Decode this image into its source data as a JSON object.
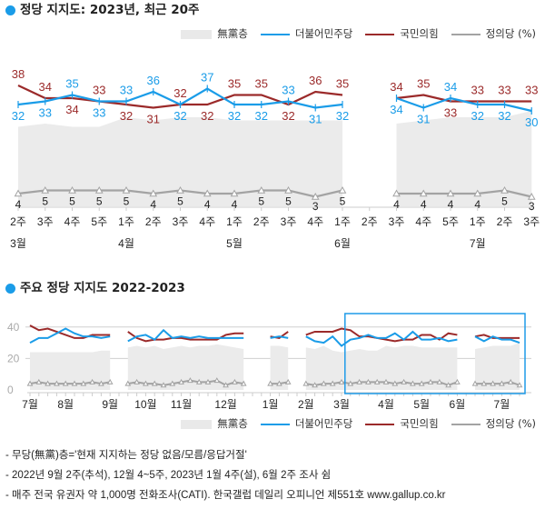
{
  "colors": {
    "dp": "#1a9ce8",
    "ppp": "#9b2a2a",
    "justice": "#a3a3a3",
    "independent": "#ebebeb",
    "highlight": "#1e9be8",
    "grid": "#d0d0d0"
  },
  "legend": {
    "independent": "無黨층",
    "dp": "더불어민주당",
    "ppp": "국민의힘",
    "justice": "정의당 (%)"
  },
  "chart_data": [
    {
      "type": "line",
      "title": "정당 지지도: 2023년, 최근 20주",
      "x_week_labels": [
        "2주",
        "3주",
        "4주",
        "5주",
        "1주",
        "2주",
        "3주",
        "4주",
        "1주",
        "2주",
        "3주",
        "4주",
        "1주",
        "2주",
        "3주",
        "4주",
        "5주",
        "1주",
        "2주",
        "3주"
      ],
      "x_month_labels": [
        {
          "label": "3월",
          "index": 0
        },
        {
          "label": "4월",
          "index": 4
        },
        {
          "label": "5월",
          "index": 8
        },
        {
          "label": "6월",
          "index": 12
        },
        {
          "label": "7월",
          "index": 17
        }
      ],
      "series": [
        {
          "name": "無黨층",
          "key": "independent",
          "type": "area",
          "values": [
            25,
            26,
            25,
            25,
            28,
            27,
            28,
            28,
            27,
            27,
            27,
            27,
            27,
            null,
            26,
            27,
            28,
            28,
            28,
            30
          ]
        },
        {
          "name": "더불어민주당",
          "key": "dp",
          "values": [
            32,
            33,
            35,
            33,
            33,
            36,
            32,
            37,
            32,
            32,
            33,
            31,
            32,
            null,
            34,
            31,
            34,
            32,
            32,
            30
          ]
        },
        {
          "name": "국민의힘",
          "key": "ppp",
          "values": [
            38,
            34,
            34,
            33,
            32,
            31,
            32,
            32,
            35,
            35,
            32,
            36,
            35,
            null,
            34,
            35,
            33,
            33,
            33,
            33
          ]
        },
        {
          "name": "정의당",
          "key": "justice",
          "values": [
            4,
            5,
            5,
            5,
            5,
            4,
            5,
            4,
            4,
            5,
            5,
            3,
            5,
            null,
            4,
            4,
            4,
            4,
            5,
            3
          ]
        }
      ],
      "unit": "%",
      "grid": false
    },
    {
      "type": "line",
      "title": "주요 정당 지지도 2022-2023",
      "months": [
        {
          "label": "7월",
          "weeks": 4
        },
        {
          "label": "8월",
          "weeks": 5
        },
        {
          "label": "9월",
          "weeks": 4
        },
        {
          "label": "10월",
          "weeks": 4
        },
        {
          "label": "11월",
          "weeks": 5
        },
        {
          "label": "12월",
          "weeks": 5
        },
        {
          "label": "1월",
          "weeks": 4
        },
        {
          "label": "2월",
          "weeks": 4
        },
        {
          "label": "3월",
          "weeks": 5
        },
        {
          "label": "4월",
          "weeks": 4
        },
        {
          "label": "5월",
          "weeks": 4
        },
        {
          "label": "6월",
          "weeks": 5
        },
        {
          "label": "7월",
          "weeks": 3
        }
      ],
      "y_ticks": [
        0,
        20,
        40
      ],
      "ylim": [
        0,
        45
      ],
      "grid": true,
      "highlight_range_weeks": [
        36,
        55
      ],
      "series": [
        {
          "name": "無黨층",
          "key": "independent",
          "type": "area",
          "values": [
            24,
            24,
            24,
            24,
            24,
            24,
            24,
            24,
            25,
            25,
            null,
            27,
            28,
            27,
            28,
            26,
            27,
            28,
            27,
            28,
            28,
            29,
            28,
            27,
            26,
            null,
            null,
            28,
            28,
            27,
            null,
            27,
            26,
            28,
            25,
            24,
            25,
            26,
            25,
            25,
            28,
            27,
            28,
            28,
            27,
            27,
            27,
            27,
            27,
            null,
            26,
            27,
            28,
            28,
            28,
            30
          ]
        },
        {
          "name": "더불어민주당",
          "key": "dp",
          "values": [
            30,
            33,
            33,
            36,
            39,
            36,
            34,
            34,
            33,
            34,
            null,
            31,
            34,
            35,
            32,
            38,
            33,
            34,
            33,
            34,
            33,
            33,
            33,
            33,
            33,
            null,
            null,
            33,
            34,
            33,
            null,
            34,
            31,
            30,
            34,
            28,
            32,
            33,
            35,
            33,
            33,
            36,
            32,
            37,
            32,
            32,
            33,
            31,
            32,
            null,
            34,
            31,
            34,
            32,
            32,
            30
          ]
        },
        {
          "name": "국민의힘",
          "key": "ppp",
          "values": [
            41,
            38,
            39,
            37,
            35,
            33,
            33,
            35,
            35,
            35,
            null,
            37,
            33,
            31,
            32,
            32,
            33,
            33,
            32,
            32,
            32,
            32,
            35,
            36,
            36,
            null,
            null,
            34,
            33,
            37,
            null,
            35,
            37,
            37,
            37,
            39,
            38,
            34,
            34,
            33,
            32,
            31,
            32,
            32,
            35,
            35,
            32,
            36,
            35,
            null,
            34,
            35,
            33,
            33,
            33,
            33
          ]
        },
        {
          "name": "정의당",
          "key": "justice",
          "values": [
            4,
            5,
            4,
            4,
            4,
            4,
            4,
            5,
            4,
            5,
            null,
            4,
            5,
            4,
            4,
            3,
            4,
            5,
            6,
            5,
            5,
            6,
            3,
            5,
            4,
            null,
            null,
            4,
            4,
            5,
            null,
            4,
            3,
            4,
            4,
            5,
            4,
            5,
            5,
            5,
            5,
            4,
            5,
            4,
            4,
            5,
            5,
            3,
            5,
            null,
            4,
            4,
            4,
            4,
            5,
            3
          ]
        }
      ],
      "unit": "%"
    }
  ],
  "notes": [
    "- 무당(無黨)층='현재 지지하는 정당 없음/모름/응답거절'",
    "- 2022년 9월 2주(추석), 12월 4~5주, 2023년 1월 4주(설), 6월 2주 조사 쉼",
    "- 매주 전국 유권자 약 1,000명 전화조사(CATI). 한국갤럽 데일리 오피니언 제551호 www.gallup.co.kr"
  ]
}
